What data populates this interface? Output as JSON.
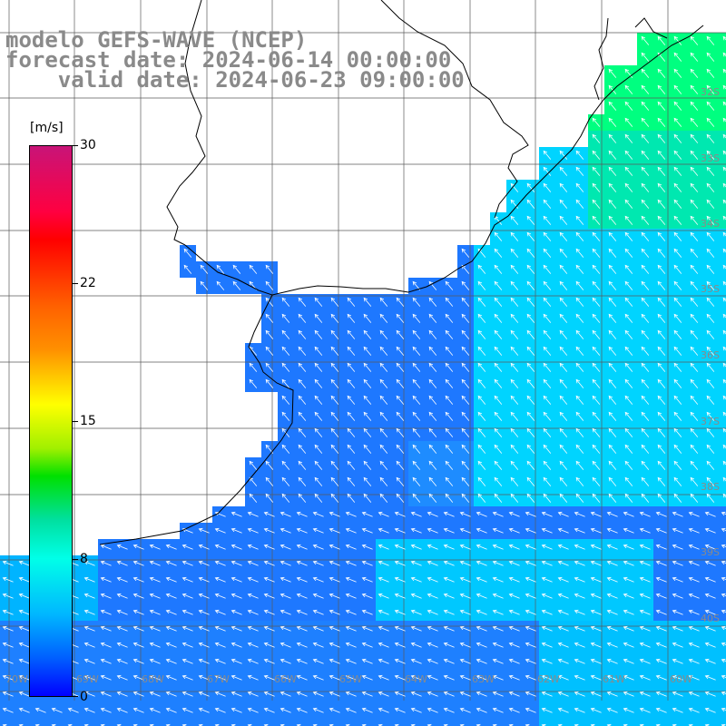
{
  "header": {
    "line1": "modelo GEFS-WAVE (NCEP)",
    "line2": "forecast date: 2024-06-14 00:00:00",
    "line3": "    valid date: 2024-06-23 09:00:00"
  },
  "colorbar": {
    "units": "[m/s]",
    "ticks": [
      "30",
      "22",
      "15",
      "8",
      "0"
    ],
    "tick_values": [
      30,
      22,
      15,
      8,
      0
    ],
    "min": 0,
    "max": 30
  },
  "lat_labels": [
    "32S",
    "33S",
    "34S",
    "35S",
    "36S",
    "37S",
    "38S",
    "39S",
    "40S"
  ],
  "lon_labels": [
    "70W",
    "69W",
    "68W",
    "67W",
    "66W",
    "65W",
    "64W",
    "63W",
    "62W",
    "61W",
    "60W"
  ],
  "field": {
    "variable": "wind speed",
    "dominant_range_ms": [
      3,
      9
    ],
    "arrow_direction": "from southeast toward northwest, turning westward in the south",
    "colors": {
      "weak": "#1e78ff",
      "moderate": "#00c8ff",
      "strong": "#00ff80",
      "land": "#ffffff",
      "grid": "#5a5a5a",
      "coast": "#000000"
    }
  }
}
